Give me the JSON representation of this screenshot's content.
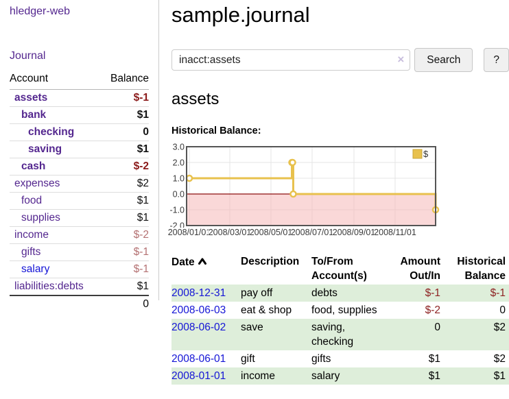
{
  "app": {
    "title": "hledger-web"
  },
  "sidebar": {
    "journal_link": "Journal",
    "table": {
      "account_header": "Account",
      "balance_header": "Balance",
      "rows": [
        {
          "name": "assets",
          "balance": "$-1",
          "indent": 1,
          "bold": true,
          "neg": true,
          "link": "purple"
        },
        {
          "name": "bank",
          "balance": "$1",
          "indent": 2,
          "bold": true,
          "neg": false,
          "link": "purple"
        },
        {
          "name": "checking",
          "balance": "0",
          "indent": 3,
          "bold": true,
          "neg": false,
          "link": "purple"
        },
        {
          "name": "saving",
          "balance": "$1",
          "indent": 3,
          "bold": true,
          "neg": false,
          "link": "purple"
        },
        {
          "name": "cash",
          "balance": "$-2",
          "indent": 2,
          "bold": true,
          "neg": true,
          "link": "purple"
        },
        {
          "name": "expenses",
          "balance": "$2",
          "indent": 1,
          "bold": false,
          "neg": false,
          "link": "purple"
        },
        {
          "name": "food",
          "balance": "$1",
          "indent": 2,
          "bold": false,
          "neg": false,
          "link": "purple"
        },
        {
          "name": "supplies",
          "balance": "$1",
          "indent": 2,
          "bold": false,
          "neg": false,
          "link": "purple"
        },
        {
          "name": "income",
          "balance": "$-2",
          "indent": 1,
          "bold": false,
          "neg": true,
          "link": "purple"
        },
        {
          "name": "gifts",
          "balance": "$-1",
          "indent": 2,
          "bold": false,
          "neg": true,
          "link": "purple"
        },
        {
          "name": "salary",
          "balance": "$-1",
          "indent": 2,
          "bold": false,
          "neg": true,
          "link": "blue"
        },
        {
          "name": "liabilities:debts",
          "balance": "$1",
          "indent": 1,
          "bold": false,
          "neg": false,
          "link": "purple"
        }
      ],
      "total": "0"
    }
  },
  "main": {
    "title": "sample.journal",
    "search": {
      "value": "inacct:assets",
      "clear_icon": "×",
      "button": "Search",
      "help_button": "?"
    },
    "account_heading": "assets"
  },
  "chart_data": {
    "type": "line",
    "title": "Historical Balance:",
    "step": true,
    "legend": "$",
    "legend_position": "top-right",
    "series": [
      {
        "name": "$",
        "points": [
          [
            "2008-01-01",
            1
          ],
          [
            "2008-06-01",
            2
          ],
          [
            "2008-06-02",
            2
          ],
          [
            "2008-06-03",
            0
          ],
          [
            "2008-12-31",
            -1
          ]
        ]
      }
    ],
    "x_ticks": [
      "2008/01/01",
      "2008/03/01",
      "2008/05/01",
      "2008/07/01",
      "2008/09/01",
      "2008/11/01"
    ],
    "y_ticks": [
      3.0,
      2.0,
      1.0,
      0.0,
      -1.0,
      -2.0
    ],
    "ylim": [
      -2,
      3
    ],
    "grid": true,
    "line_color": "#e8c14d",
    "negative_region_color": "#f5b8b8",
    "zero_line_color": "#8b0000"
  },
  "register": {
    "headers": {
      "date": "Date",
      "description": "Description",
      "accounts_line1": "To/From",
      "accounts_line2": "Account(s)",
      "amount_line1": "Amount",
      "amount_line2": "Out/In",
      "balance_line1": "Historical",
      "balance_line2": "Balance"
    },
    "sort": {
      "column": "Date",
      "direction": "ascending"
    },
    "rows": [
      {
        "date": "2008-12-31",
        "description": "pay off",
        "accounts": "debts",
        "amount": "$-1",
        "balance": "$-1",
        "amount_neg": true,
        "balance_neg": true
      },
      {
        "date": "2008-06-03",
        "description": "eat & shop",
        "accounts": "food, supplies",
        "amount": "$-2",
        "balance": "0",
        "amount_neg": true,
        "balance_neg": false
      },
      {
        "date": "2008-06-02",
        "description": "save",
        "accounts": "saving, checking",
        "amount": "0",
        "balance": "$2",
        "amount_neg": false,
        "balance_neg": false
      },
      {
        "date": "2008-06-01",
        "description": "gift",
        "accounts": "gifts",
        "amount": "$1",
        "balance": "$2",
        "amount_neg": false,
        "balance_neg": false
      },
      {
        "date": "2008-01-01",
        "description": "income",
        "accounts": "salary",
        "amount": "$1",
        "balance": "$1",
        "amount_neg": false,
        "balance_neg": false
      }
    ]
  }
}
